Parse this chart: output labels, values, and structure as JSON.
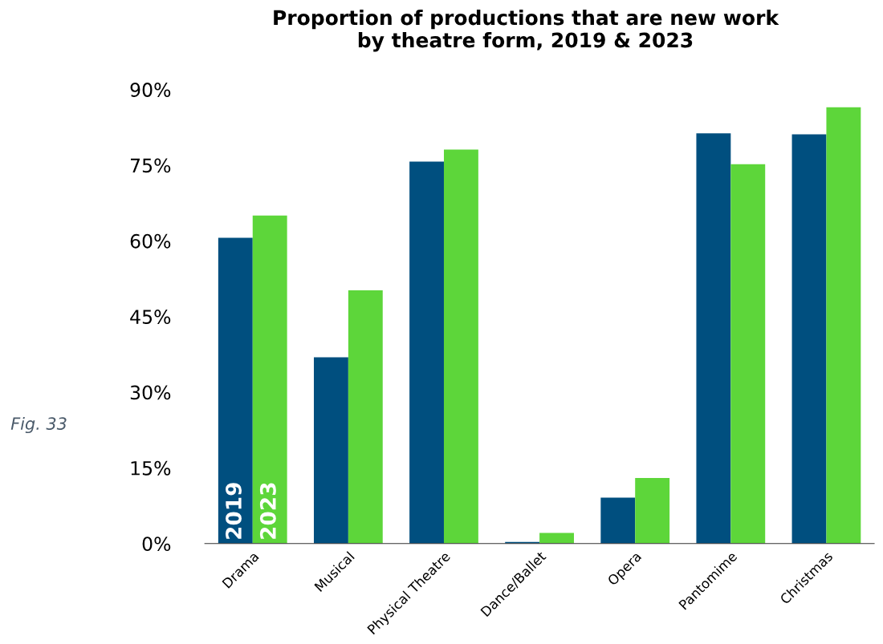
{
  "chart_data": {
    "type": "bar",
    "title": "Proportion of productions that are new work\nby theatre form, 2019 & 2023",
    "categories": [
      "Drama",
      "Musical",
      "Physical Theatre",
      "Dance/Ballet",
      "Opera",
      "Pantomime",
      "Christmas"
    ],
    "series": [
      {
        "name": "2019",
        "color": "#004f7f",
        "values": [
          60.6,
          36.9,
          75.7,
          0.3,
          9.1,
          81.3,
          81.1
        ]
      },
      {
        "name": "2023",
        "color": "#5dd63a",
        "values": [
          65.0,
          50.2,
          78.1,
          2.1,
          13.0,
          75.2,
          86.5
        ]
      }
    ],
    "ylim": [
      0,
      90
    ],
    "yticks": [
      {
        "value": 0,
        "label": "0%"
      },
      {
        "value": 15,
        "label": "15%"
      },
      {
        "value": 30,
        "label": "30%"
      },
      {
        "value": 45,
        "label": "45%"
      },
      {
        "value": 60,
        "label": "60%"
      },
      {
        "value": 75,
        "label": "75%"
      },
      {
        "value": 90,
        "label": "90%"
      }
    ],
    "grid": false,
    "legend": false,
    "annotations": [
      "Fig. 33"
    ]
  }
}
